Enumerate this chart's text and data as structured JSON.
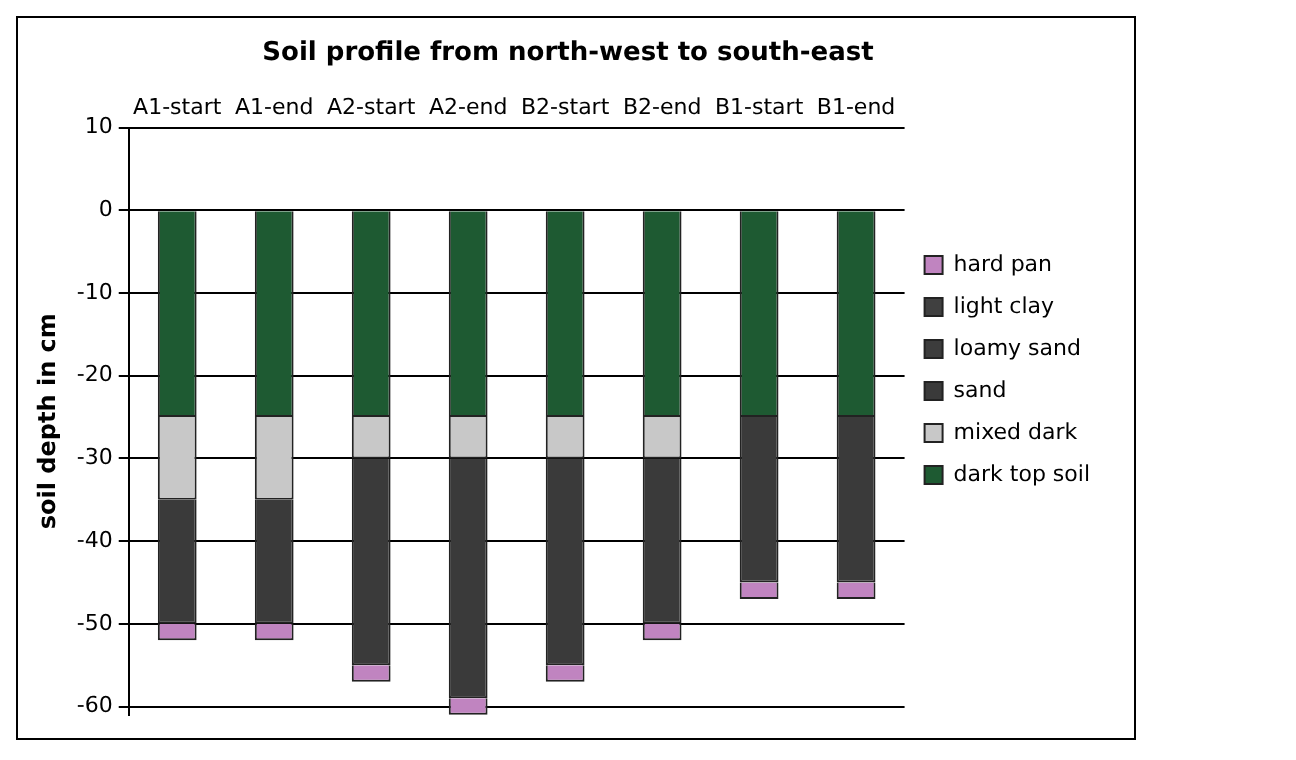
{
  "chart_data": {
    "type": "bar",
    "title": "Soil profile from north-west to south-east",
    "ylabel": "soil depth in cm",
    "categories": [
      "A1-start",
      "A1-end",
      "A2-start",
      "A2-end",
      "B2-start",
      "B2-end",
      "B1-start",
      "B1-end"
    ],
    "stacked": true,
    "ylim": [
      -61,
      10
    ],
    "yticks": [
      -60,
      -50,
      -40,
      -30,
      -20,
      -10,
      0,
      10
    ],
    "grid": "y",
    "legend": "right",
    "series": [
      {
        "name": "dark top soil",
        "color": "#1e5a32",
        "values": [
          -25,
          -25,
          -25,
          -25,
          -25,
          -25,
          -25,
          -25
        ]
      },
      {
        "name": "mixed dark",
        "color": "#c8c8c8",
        "values": [
          -10,
          -10,
          -5,
          -5,
          -5,
          -5,
          0,
          0
        ]
      },
      {
        "name": "sand",
        "color": "#3a3a3a",
        "values": [
          -15,
          -15,
          -25,
          -29,
          -25,
          -20,
          -20,
          -20
        ]
      },
      {
        "name": "loamy sand",
        "color": "#3c3c3c",
        "values": [
          0,
          0,
          0,
          0,
          0,
          0,
          0,
          0
        ]
      },
      {
        "name": "light clay",
        "color": "#404040",
        "values": [
          0,
          0,
          0,
          0,
          0,
          0,
          0,
          0
        ]
      },
      {
        "name": "hard pan",
        "color": "#c084c0",
        "values": [
          -2,
          -2,
          -2,
          -2,
          -2,
          -2,
          -2,
          -2
        ]
      }
    ]
  }
}
